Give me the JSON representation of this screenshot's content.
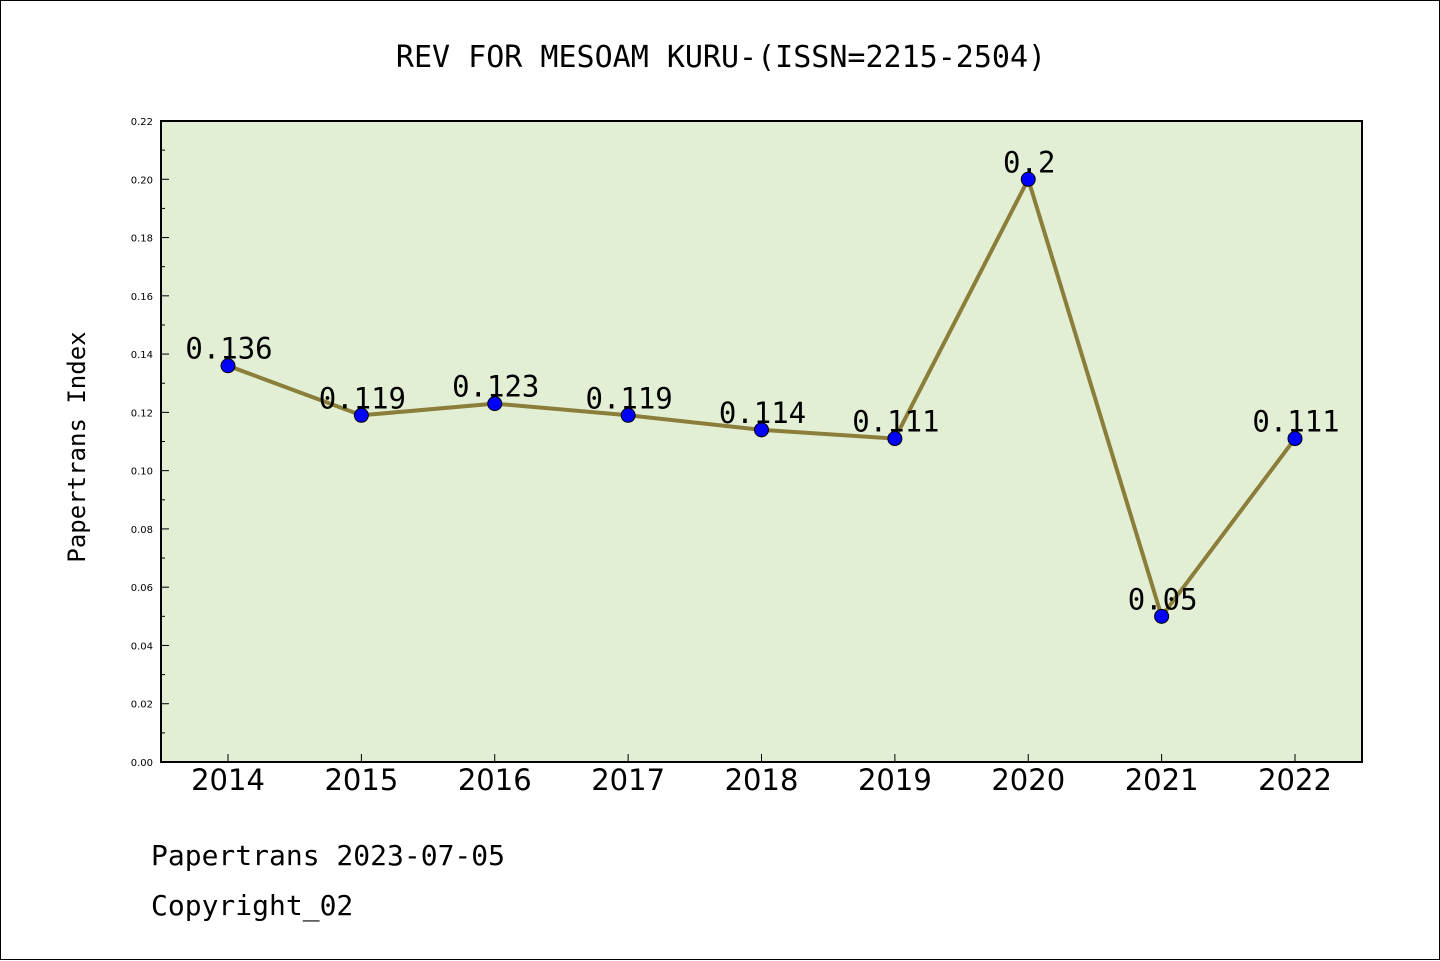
{
  "chart_data": {
    "type": "line",
    "title": "REV FOR MESOAM KURU-(ISSN=2215-2504)",
    "xlabel": "",
    "ylabel": "Papertrans Index",
    "categories": [
      "2014",
      "2015",
      "2016",
      "2017",
      "2018",
      "2019",
      "2020",
      "2021",
      "2022"
    ],
    "series": [
      {
        "values": [
          0.136,
          0.119,
          0.123,
          0.119,
          0.114,
          0.111,
          0.2,
          0.05,
          0.111
        ],
        "labels": [
          "0.136",
          "0.119",
          "0.123",
          "0.119",
          "0.114",
          "0.111",
          "0.2",
          "0.05",
          "0.111"
        ],
        "line_color": "#8b7d3a",
        "marker_color": "#0000ff"
      }
    ],
    "ylim": [
      0,
      0.22
    ],
    "yticks": [
      "0.00",
      "0.02",
      "0.04",
      "0.06",
      "0.08",
      "0.10",
      "0.12",
      "0.14",
      "0.16",
      "0.18",
      "0.20",
      "0.22"
    ],
    "plot_background": "#e2efd4",
    "grid": false
  },
  "footer": {
    "line1": "Papertrans 2023-07-05",
    "line2": "Copyright_02"
  }
}
